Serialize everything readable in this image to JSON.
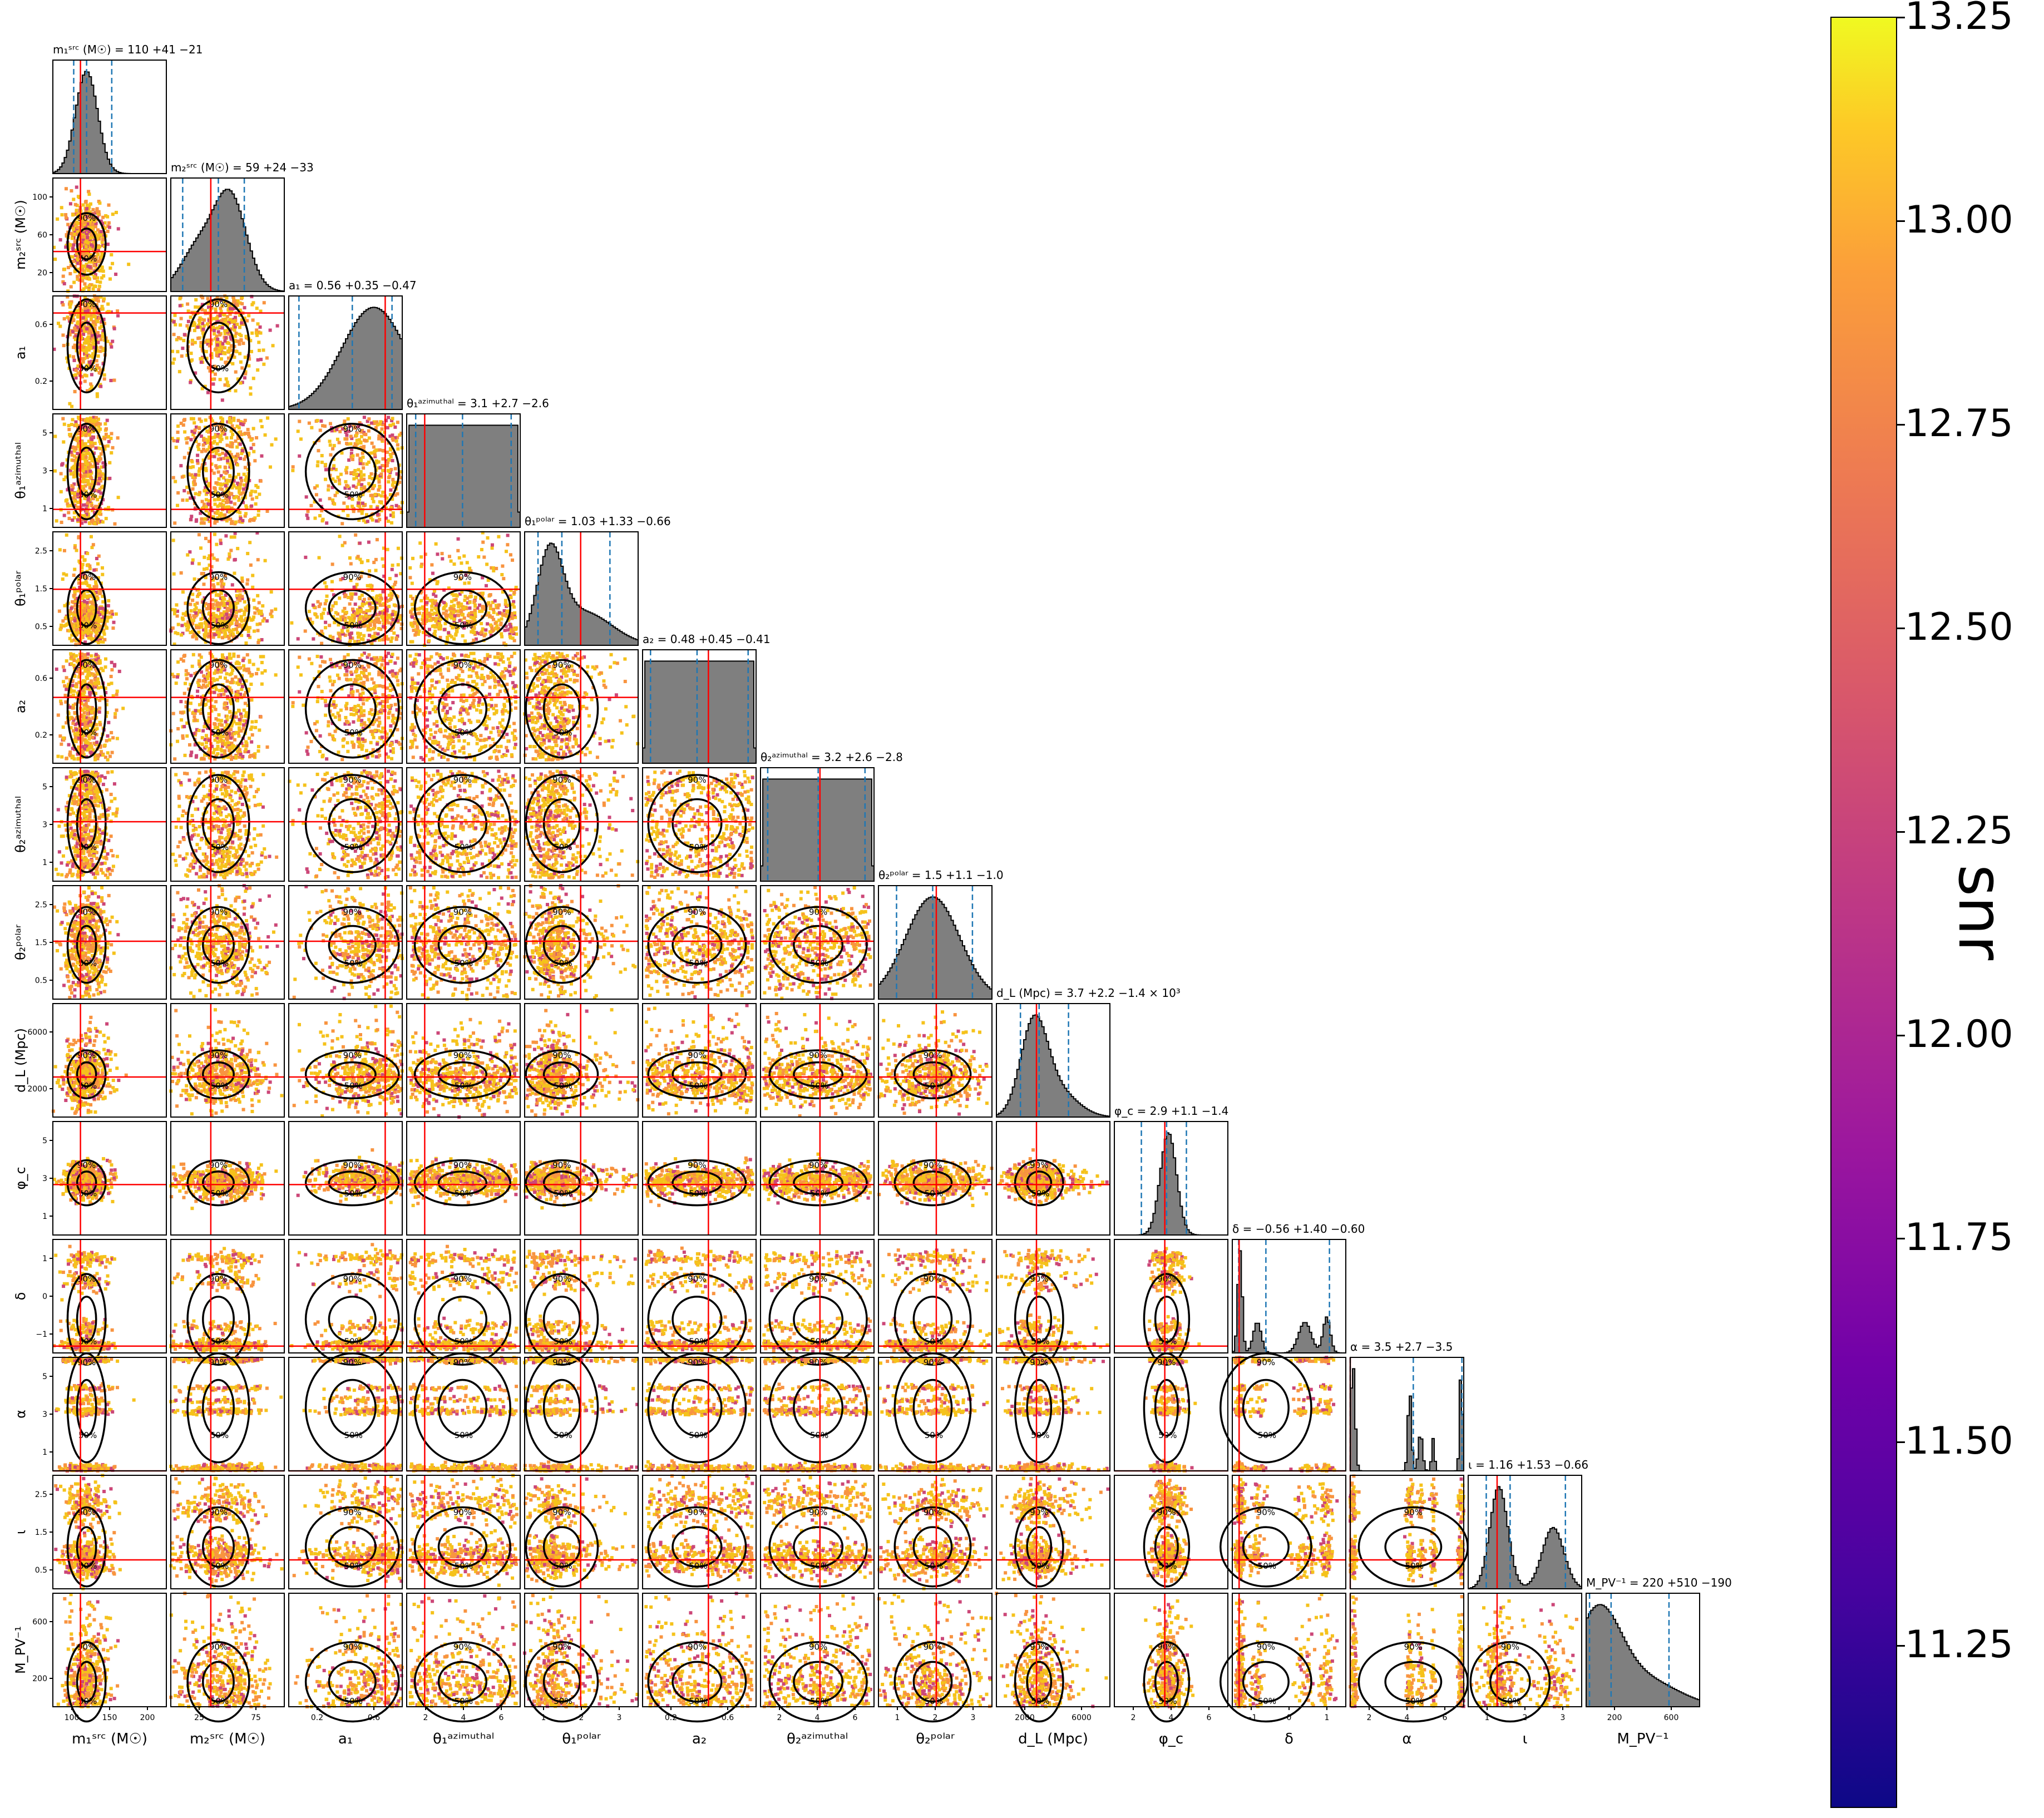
{
  "colors": {
    "hist_fill": "#7f7f7f",
    "truth_line": "#ff0000",
    "quantile_line": "#1f77b4",
    "contour": "#000000",
    "scatter_high": "#f5c21b",
    "scatter_mid": "#f89440",
    "scatter_low": "#cc4778"
  },
  "colorbar": {
    "label": "snr",
    "range": [
      11.05,
      13.25
    ],
    "ticks": [
      "11.25",
      "11.50",
      "11.75",
      "12.00",
      "12.25",
      "12.50",
      "12.75",
      "13.00",
      "13.25"
    ],
    "colormap": "plasma"
  },
  "chart_data": {
    "type": "corner",
    "contour_labels": [
      "50%",
      "90%"
    ],
    "parameters": [
      {
        "key": "m1",
        "xlabel": "m₁ˢʳᶜ (M☉)",
        "ylabel": "",
        "title": "m₁ˢʳᶜ (M☉) = 110 +41 −21",
        "range": [
          55,
          240
        ],
        "ticks": [
          "100",
          "150",
          "200"
        ],
        "truth": 100,
        "median": 110,
        "q_lo": 89,
        "q_hi": 151,
        "dist": [
          [
            110,
            18,
            1
          ]
        ]
      },
      {
        "key": "m2",
        "xlabel": "m₂ˢʳᶜ (M☉)",
        "ylabel": "m₂ˢʳᶜ (M☉)",
        "title": "m₂ˢʳᶜ (M☉) = 59 +24 −33",
        "range": [
          15,
          120
        ],
        "ticks": [
          "25",
          "75"
        ],
        "yticks": [
          "20",
          "60",
          "100"
        ],
        "truth": 52,
        "median": 59,
        "q_lo": 26,
        "q_hi": 83,
        "dist": [
          [
            70,
            15,
            1
          ],
          [
            40,
            16,
            0.45
          ]
        ]
      },
      {
        "key": "a1",
        "xlabel": "a₁",
        "ylabel": "a₁",
        "title": "a₁ = 0.56 +0.35 −0.47",
        "range": [
          0.0,
          1.0
        ],
        "ticks": [
          "0.2",
          "0.6"
        ],
        "yticks": [
          "0.2",
          "0.6"
        ],
        "truth": 0.85,
        "median": 0.56,
        "q_lo": 0.09,
        "q_hi": 0.91,
        "dist": [
          [
            0.75,
            0.28,
            1
          ]
        ]
      },
      {
        "key": "theta1_az",
        "xlabel": "θ₁ᵃᶻⁱᵐᵘᵗʰᵃˡ",
        "ylabel": "θ₁ᵃᶻⁱᵐᵘᵗʰᵃˡ",
        "title": "θ₁ᵃᶻⁱᵐᵘᵗʰᵃˡ = 3.1 +2.7 −2.6",
        "range": [
          0.0,
          6.3
        ],
        "ticks": [
          "2",
          "4",
          "6"
        ],
        "yticks": [
          "1",
          "3",
          "5"
        ],
        "truth": 1.0,
        "median": 3.1,
        "q_lo": 0.5,
        "q_hi": 5.8,
        "dist": "uniform"
      },
      {
        "key": "theta1_polar",
        "xlabel": "θ₁ᵖᵒˡᵃʳ",
        "ylabel": "θ₁ᵖᵒˡᵃʳ",
        "title": "θ₁ᵖᵒˡᵃʳ = 1.03 +1.33 −0.66",
        "range": [
          0.0,
          3.14
        ],
        "ticks": [
          "1",
          "2",
          "3"
        ],
        "yticks": [
          "0.5",
          "1.5",
          "2.5"
        ],
        "truth": 1.55,
        "median": 1.03,
        "q_lo": 0.37,
        "q_hi": 2.36,
        "dist": [
          [
            0.7,
            0.35,
            1
          ],
          [
            1.6,
            0.8,
            0.4
          ]
        ]
      },
      {
        "key": "a2",
        "xlabel": "a₂",
        "ylabel": "a₂",
        "title": "a₂ = 0.48 +0.45 −0.41",
        "range": [
          0.0,
          1.0
        ],
        "ticks": [
          "0.2",
          "0.6"
        ],
        "yticks": [
          "0.2",
          "0.6"
        ],
        "truth": 0.58,
        "median": 0.48,
        "q_lo": 0.07,
        "q_hi": 0.93,
        "dist": "uniform"
      },
      {
        "key": "theta2_az",
        "xlabel": "θ₂ᵃᶻⁱᵐᵘᵗʰᵃˡ",
        "ylabel": "θ₂ᵃᶻⁱᵐᵘᵗʰᵃˡ",
        "title": "θ₂ᵃᶻⁱᵐᵘᵗʰᵃˡ = 3.2 +2.6 −2.8",
        "range": [
          0.0,
          6.3
        ],
        "ticks": [
          "2",
          "4",
          "6"
        ],
        "yticks": [
          "1",
          "3",
          "5"
        ],
        "truth": 3.3,
        "median": 3.2,
        "q_lo": 0.4,
        "q_hi": 5.8,
        "dist": "uniform"
      },
      {
        "key": "theta2_polar",
        "xlabel": "θ₂ᵖᵒˡᵃʳ",
        "ylabel": "θ₂ᵖᵒˡᵃʳ",
        "title": "θ₂ᵖᵒˡᵃʳ = 1.5 +1.1 −1.0",
        "range": [
          0.0,
          3.14
        ],
        "ticks": [
          "1",
          "2",
          "3"
        ],
        "yticks": [
          "0.5",
          "1.5",
          "2.5"
        ],
        "truth": 1.6,
        "median": 1.5,
        "q_lo": 0.5,
        "q_hi": 2.6,
        "dist": [
          [
            1.5,
            0.75,
            1
          ]
        ]
      },
      {
        "key": "dL",
        "xlabel": "d_L (Mpc)",
        "ylabel": "d_L (Mpc)",
        "title": "d_L (Mpc) = 3.7 +2.2 −1.4 × 10³",
        "range": [
          500,
          9000
        ],
        "ticks": [
          "2000",
          "6000"
        ],
        "yticks": [
          "2000",
          "6000"
        ],
        "truth": 3500,
        "median": 3700,
        "q_lo": 2300,
        "q_hi": 5900,
        "dist": [
          [
            3300,
            1000,
            1
          ],
          [
            5000,
            1500,
            0.3
          ]
        ]
      },
      {
        "key": "phic",
        "xlabel": "φ_c",
        "ylabel": "φ_c",
        "title": "φ_c = 2.9 +1.1 −1.4",
        "range": [
          0.0,
          6.3
        ],
        "ticks": [
          "2",
          "4",
          "6"
        ],
        "yticks": [
          "1",
          "3",
          "5"
        ],
        "truth": 2.8,
        "median": 2.9,
        "q_lo": 1.5,
        "q_hi": 4.0,
        "dist": [
          [
            3.0,
            0.45,
            1
          ]
        ]
      },
      {
        "key": "delta",
        "xlabel": "δ",
        "ylabel": "δ",
        "title": "δ = −0.56 +1.40 −0.60",
        "range": [
          -1.3,
          1.2
        ],
        "ticks": [
          "−1",
          "0",
          "1"
        ],
        "yticks": [
          "−1",
          "0",
          "1"
        ],
        "truth": -1.15,
        "median": -0.56,
        "q_lo": -1.16,
        "q_hi": 0.84,
        "dist": [
          [
            -1.13,
            0.05,
            1
          ],
          [
            -0.75,
            0.09,
            0.3
          ],
          [
            0.3,
            0.14,
            0.3
          ],
          [
            0.78,
            0.08,
            0.35
          ]
        ]
      },
      {
        "key": "alpha",
        "xlabel": "α",
        "ylabel": "α",
        "title": "α = 3.5 +2.7 −3.5",
        "range": [
          0.0,
          6.3
        ],
        "ticks": [
          "2",
          "4",
          "6"
        ],
        "yticks": [
          "1",
          "3",
          "5"
        ],
        "truth": 0.0,
        "median": 3.5,
        "q_lo": 0.0,
        "q_hi": 6.2,
        "dist": [
          [
            0.15,
            0.12,
            1
          ],
          [
            3.3,
            0.1,
            0.75
          ],
          [
            3.9,
            0.12,
            0.35
          ],
          [
            4.6,
            0.08,
            0.3
          ],
          [
            6.15,
            0.08,
            0.95
          ]
        ]
      },
      {
        "key": "iota",
        "xlabel": "ι",
        "ylabel": "ι",
        "title": "ι = 1.16 +1.53 −0.66",
        "range": [
          0.0,
          3.14
        ],
        "ticks": [
          "1",
          "2",
          "3"
        ],
        "yticks": [
          "0.5",
          "1.5",
          "2.5"
        ],
        "truth": 0.8,
        "median": 1.16,
        "q_lo": 0.5,
        "q_hi": 2.69,
        "dist": [
          [
            0.85,
            0.25,
            1
          ],
          [
            2.35,
            0.3,
            0.6
          ]
        ]
      },
      {
        "key": "MPV",
        "xlabel": "M_PV⁻¹",
        "ylabel": "M_PV⁻¹",
        "title": "M_PV⁻¹ = 220 +510 −190",
        "range": [
          0,
          1000
        ],
        "ticks": [
          "200",
          "600"
        ],
        "yticks": [
          "200",
          "600"
        ],
        "truth": null,
        "median": 220,
        "q_lo": 30,
        "q_hi": 730,
        "dist": [
          [
            100,
            200,
            1
          ],
          [
            500,
            300,
            0.3
          ]
        ]
      }
    ]
  }
}
